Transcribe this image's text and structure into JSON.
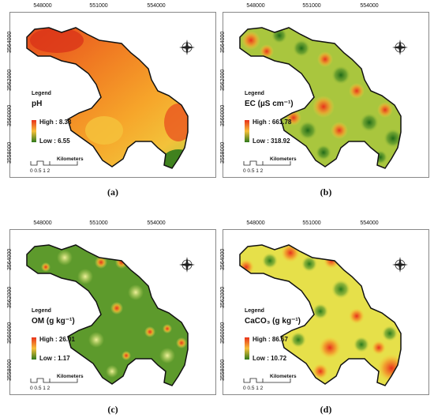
{
  "panels": [
    {
      "id": "a",
      "caption": "(a)",
      "x_ticks": [
        "548000",
        "551000",
        "554000"
      ],
      "y_ticks": [
        "3564000",
        "3562000",
        "3560000",
        "3558000"
      ],
      "legend_title": "Legend",
      "variable": "pH",
      "high_label": "High : 8.33",
      "low_label": "Low : 6.55",
      "scale_unit": "Kilometers",
      "scale_ticks": "0  0.5  1        2",
      "color_high": "#e8321b",
      "color_low": "#2f7a1c"
    },
    {
      "id": "b",
      "caption": "(b)",
      "x_ticks": [
        "548000",
        "551000",
        "554000"
      ],
      "y_ticks": [
        "3564000",
        "3562000",
        "3560000",
        "3558000"
      ],
      "legend_title": "Legend",
      "variable": "EC (µS cm⁻¹)",
      "high_label": "High : 661.78",
      "low_label": "Low : 318.92",
      "scale_unit": "Kilometers",
      "scale_ticks": "0  0.5  1        2",
      "color_high": "#e8321b",
      "color_low": "#2f7a1c"
    },
    {
      "id": "c",
      "caption": "(c)",
      "x_ticks": [
        "548000",
        "551000",
        "554000"
      ],
      "y_ticks": [
        "3564000",
        "3562000",
        "3560000",
        "3558000"
      ],
      "legend_title": "Legend",
      "variable": "OM (g kg⁻¹)",
      "high_label": "High : 26.01",
      "low_label": "Low : 1.17",
      "scale_unit": "Kilometers",
      "scale_ticks": "0  0.5  1        2",
      "color_high": "#e8321b",
      "color_low": "#2f7a1c"
    },
    {
      "id": "d",
      "caption": "(d)",
      "x_ticks": [
        "548000",
        "551000",
        "554000"
      ],
      "y_ticks": [
        "3564000",
        "3562000",
        "3560000",
        "3558000"
      ],
      "legend_title": "Legend",
      "variable": "CaCO₃ (g kg⁻¹)",
      "high_label": "High : 86.57",
      "low_label": "Low : 10.72",
      "scale_unit": "Kilometers",
      "scale_ticks": "0  0.5  1        2",
      "color_high": "#e8321b",
      "color_low": "#2f7a1c"
    }
  ]
}
